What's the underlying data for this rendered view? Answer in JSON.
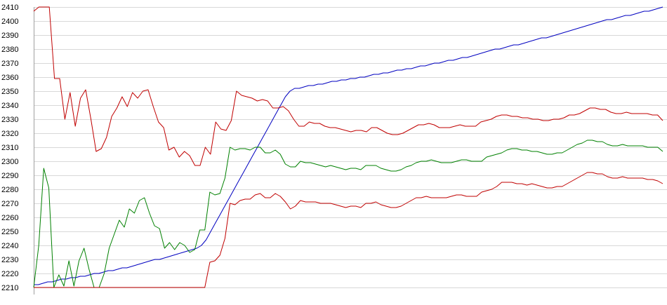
{
  "chart_data": {
    "type": "line",
    "title": "",
    "xlabel": "",
    "ylabel": "",
    "ylim": [
      2210,
      2410
    ],
    "yticks": [
      2410,
      2400,
      2390,
      2380,
      2370,
      2360,
      2350,
      2340,
      2330,
      2320,
      2310,
      2300,
      2290,
      2280,
      2270,
      2260,
      2250,
      2240,
      2230,
      2220,
      2210
    ],
    "grid": true,
    "legend": "none",
    "series": [
      {
        "color": "#0000c0",
        "values": [
          2212,
          2212,
          2213,
          2214,
          2214,
          2215,
          2216,
          2216,
          2217,
          2217,
          2218,
          2218,
          2219,
          2220,
          2220,
          2221,
          2222,
          2222,
          2223,
          2224,
          2224,
          2225,
          2226,
          2227,
          2228,
          2229,
          2230,
          2230,
          2231,
          2232,
          2233,
          2234,
          2235,
          2236,
          2237,
          2238,
          2240,
          2244,
          2250,
          2256,
          2262,
          2268,
          2274,
          2280,
          2286,
          2292,
          2298,
          2304,
          2310,
          2316,
          2322,
          2328,
          2334,
          2340,
          2346,
          2350,
          2352,
          2352,
          2353,
          2354,
          2354,
          2355,
          2355,
          2356,
          2357,
          2357,
          2358,
          2358,
          2359,
          2359,
          2360,
          2360,
          2361,
          2362,
          2362,
          2363,
          2363,
          2364,
          2365,
          2365,
          2366,
          2366,
          2367,
          2368,
          2368,
          2369,
          2370,
          2370,
          2371,
          2372,
          2372,
          2373,
          2374,
          2374,
          2375,
          2376,
          2377,
          2378,
          2379,
          2380,
          2380,
          2381,
          2382,
          2383,
          2383,
          2384,
          2385,
          2386,
          2387,
          2388,
          2388,
          2389,
          2390,
          2391,
          2392,
          2393,
          2394,
          2395,
          2396,
          2397,
          2398,
          2399,
          2400,
          2401,
          2401,
          2402,
          2403,
          2404,
          2404,
          2405,
          2406,
          2407,
          2407,
          2408,
          2409,
          2410
        ]
      },
      {
        "color": "#c00000",
        "values": [
          2407,
          2410,
          2410,
          2410,
          2359,
          2359,
          2330,
          2349,
          2325,
          2345,
          2351,
          2330,
          2307,
          2309,
          2317,
          2332,
          2338,
          2346,
          2339,
          2349,
          2345,
          2350,
          2351,
          2339,
          2328,
          2324,
          2308,
          2310,
          2303,
          2307,
          2304,
          2297,
          2297,
          2310,
          2305,
          2328,
          2323,
          2322,
          2329,
          2350,
          2347,
          2346,
          2345,
          2343,
          2344,
          2343,
          2338,
          2338,
          2339,
          2336,
          2330,
          2325,
          2325,
          2328,
          2327,
          2327,
          2325,
          2324,
          2324,
          2323,
          2322,
          2321,
          2322,
          2322,
          2321,
          2324,
          2324,
          2322,
          2320,
          2319,
          2319,
          2320,
          2322,
          2324,
          2326,
          2326,
          2327,
          2326,
          2324,
          2324,
          2324,
          2325,
          2326,
          2325,
          2325,
          2325,
          2328,
          2329,
          2330,
          2332,
          2333,
          2333,
          2332,
          2332,
          2331,
          2331,
          2330,
          2330,
          2329,
          2329,
          2330,
          2330,
          2331,
          2333,
          2333,
          2334,
          2336,
          2338,
          2338,
          2337,
          2337,
          2335,
          2334,
          2334,
          2335,
          2334,
          2334,
          2334,
          2334,
          2333,
          2333,
          2329
        ]
      },
      {
        "color": "#008000",
        "values": [
          2210,
          2240,
          2295,
          2281,
          2210,
          2219,
          2211,
          2229,
          2211,
          2229,
          2238,
          2223,
          2210,
          2210,
          2220,
          2238,
          2248,
          2258,
          2253,
          2266,
          2263,
          2272,
          2274,
          2263,
          2254,
          2252,
          2238,
          2242,
          2237,
          2242,
          2240,
          2235,
          2237,
          2251,
          2251,
          2278,
          2276,
          2277,
          2288,
          2310,
          2308,
          2309,
          2309,
          2308,
          2310,
          2310,
          2306,
          2306,
          2308,
          2305,
          2298,
          2296,
          2296,
          2300,
          2299,
          2299,
          2298,
          2297,
          2296,
          2297,
          2296,
          2295,
          2294,
          2295,
          2295,
          2294,
          2297,
          2297,
          2297,
          2295,
          2294,
          2293,
          2293,
          2294,
          2296,
          2297,
          2299,
          2300,
          2300,
          2301,
          2300,
          2299,
          2299,
          2299,
          2300,
          2301,
          2301,
          2300,
          2300,
          2300,
          2303,
          2304,
          2305,
          2306,
          2308,
          2309,
          2309,
          2308,
          2308,
          2307,
          2307,
          2306,
          2305,
          2305,
          2306,
          2306,
          2308,
          2310,
          2312,
          2313,
          2315,
          2315,
          2314,
          2314,
          2312,
          2311,
          2311,
          2312,
          2311,
          2311,
          2311,
          2311,
          2310,
          2310,
          2310,
          2307
        ]
      },
      {
        "color": "#c00000",
        "values": [
          2210,
          2210,
          2210,
          2210,
          2210,
          2210,
          2210,
          2210,
          2210,
          2210,
          2210,
          2210,
          2210,
          2210,
          2210,
          2210,
          2210,
          2210,
          2210,
          2210,
          2210,
          2210,
          2210,
          2210,
          2210,
          2210,
          2210,
          2210,
          2210,
          2210,
          2210,
          2210,
          2210,
          2210,
          2210,
          2228,
          2229,
          2233,
          2245,
          2270,
          2269,
          2272,
          2273,
          2273,
          2276,
          2277,
          2274,
          2274,
          2277,
          2275,
          2271,
          2266,
          2268,
          2272,
          2271,
          2271,
          2271,
          2270,
          2270,
          2270,
          2269,
          2268,
          2267,
          2268,
          2268,
          2267,
          2270,
          2270,
          2271,
          2269,
          2268,
          2267,
          2267,
          2268,
          2270,
          2272,
          2274,
          2274,
          2275,
          2274,
          2274,
          2274,
          2274,
          2275,
          2276,
          2276,
          2275,
          2275,
          2275,
          2278,
          2279,
          2280,
          2282,
          2285,
          2285,
          2285,
          2284,
          2284,
          2283,
          2284,
          2283,
          2282,
          2281,
          2281,
          2282,
          2282,
          2284,
          2286,
          2288,
          2290,
          2292,
          2292,
          2291,
          2291,
          2289,
          2288,
          2288,
          2289,
          2288,
          2288,
          2288,
          2288,
          2287,
          2287,
          2286,
          2284
        ]
      }
    ]
  }
}
